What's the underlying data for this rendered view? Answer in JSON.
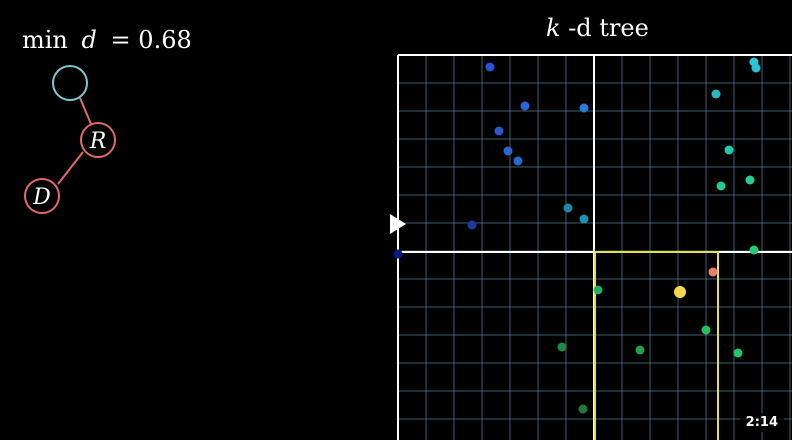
{
  "min_label": {
    "prefix": "min",
    "var": "d",
    "equals": "=",
    "value": "0.68"
  },
  "title": {
    "var": "k",
    "text": "-d tree"
  },
  "tree": {
    "nodes": [
      {
        "id": "root",
        "label": "",
        "color": "#7fc8cf"
      },
      {
        "id": "R",
        "label": "R",
        "color": "#e06a6a"
      },
      {
        "id": "D",
        "label": "D",
        "color": "#e06a6a"
      }
    ],
    "edge_color": "#e06a6a"
  },
  "plot": {
    "grid_color": "#6fa7c9",
    "border_color": "#ffffff",
    "query_box_color": "#e6e04a",
    "query_point_color": "#f5d84a",
    "nearest_point_color": "#e8806a"
  },
  "player": {
    "time": "2:14"
  }
}
